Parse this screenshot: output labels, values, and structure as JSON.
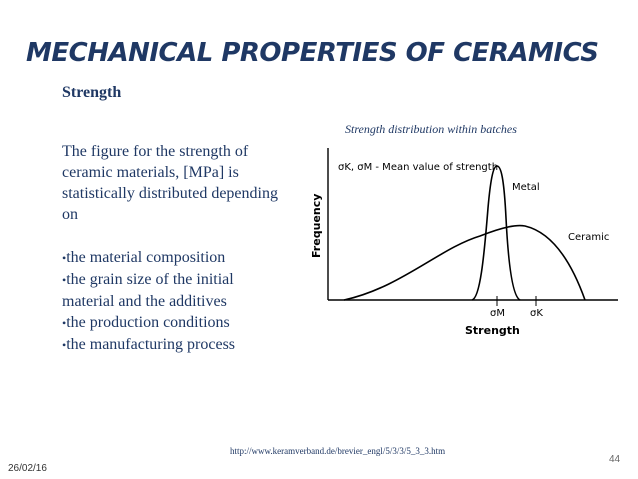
{
  "slide": {
    "title": "MECHANICAL PROPERTIES OF CERAMICS",
    "subtitle": "Strength",
    "paragraph_lines": [
      "The figure for the strength of",
      "ceramic materials, [MPa] is",
      "statistically distributed depending",
      "on"
    ],
    "bullets": [
      {
        "lines": [
          "the material composition"
        ]
      },
      {
        "lines": [
          "the grain size of the initial",
          "material and the additives"
        ]
      },
      {
        "lines": [
          "the production conditions"
        ]
      },
      {
        "lines": [
          "the manufacturing process"
        ]
      }
    ],
    "bullet_symbol": "•",
    "url": "http://www.keramverband.de/brevier_engl/5/3/3/5_3_3.htm",
    "date": "26/02/16",
    "page_number": "44"
  },
  "figure": {
    "caption": "Strength distribution within batches",
    "ylabel": "Frequency",
    "xlabel": "Strength",
    "legend_text": "σK, σM - Mean value of strength",
    "curve_labels": {
      "metal": "Metal",
      "ceramic": "Ceramic"
    },
    "marker_labels": {
      "metal": "σM",
      "ceramic": "σK"
    },
    "colors": {
      "curve": "#000000",
      "text": "#1f3864"
    }
  }
}
